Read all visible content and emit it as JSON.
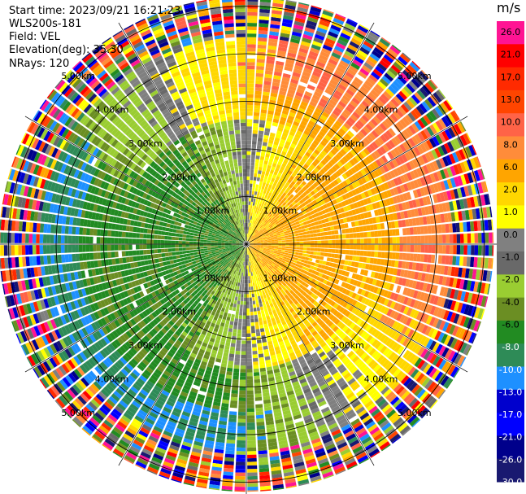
{
  "header": {
    "start_time": "Start time: 2023/09/21 16:21:23",
    "instrument": "WLS200s-181",
    "field": "Field: VEL",
    "elevation": "Elevation(deg): 35.30",
    "nrays": "NRays: 120"
  },
  "chart_data": {
    "type": "heatmap",
    "projection": "polar-ppi",
    "field": "VEL",
    "units": "m/s",
    "nrays": 120,
    "elevation_deg": 35.3,
    "range_rings_km": [
      1,
      2,
      3,
      4,
      5
    ],
    "ring_labels": [
      "1.00km",
      "2.00km",
      "3.00km",
      "4.00km",
      "5.00km"
    ],
    "max_range_km": 5.2,
    "colorbar": {
      "title": "m/s",
      "tick_labels": [
        "26.0",
        "21.0",
        "17.0",
        "13.0",
        "10.0",
        "8.0",
        "6.0",
        "2.0",
        "1.0",
        "0.0",
        "-1.0",
        "-2.0",
        "-4.0",
        "-6.0",
        "-8.0",
        "-10.0",
        "-13.0",
        "-17.0",
        "-21.0",
        "-26.0",
        "-30.0"
      ],
      "colors": [
        "#ff1493",
        "#ff0000",
        "#ff2a00",
        "#ff4500",
        "#ff6347",
        "#ff8c3a",
        "#ffa500",
        "#ffd700",
        "#ffff00",
        "#808080",
        "#696969",
        "#9acd32",
        "#6b8e23",
        "#228b22",
        "#2e8b57",
        "#1e90ff",
        "#0000cd",
        "#0000ff",
        "#00008b",
        "#191970"
      ]
    },
    "velocity_pattern": {
      "inner_ring_positive_azimuths_deg": [
        45,
        180
      ],
      "outer_ring_positive_azimuths_deg": [
        0,
        120
      ],
      "noise_beyond_km": 4.3
    }
  }
}
